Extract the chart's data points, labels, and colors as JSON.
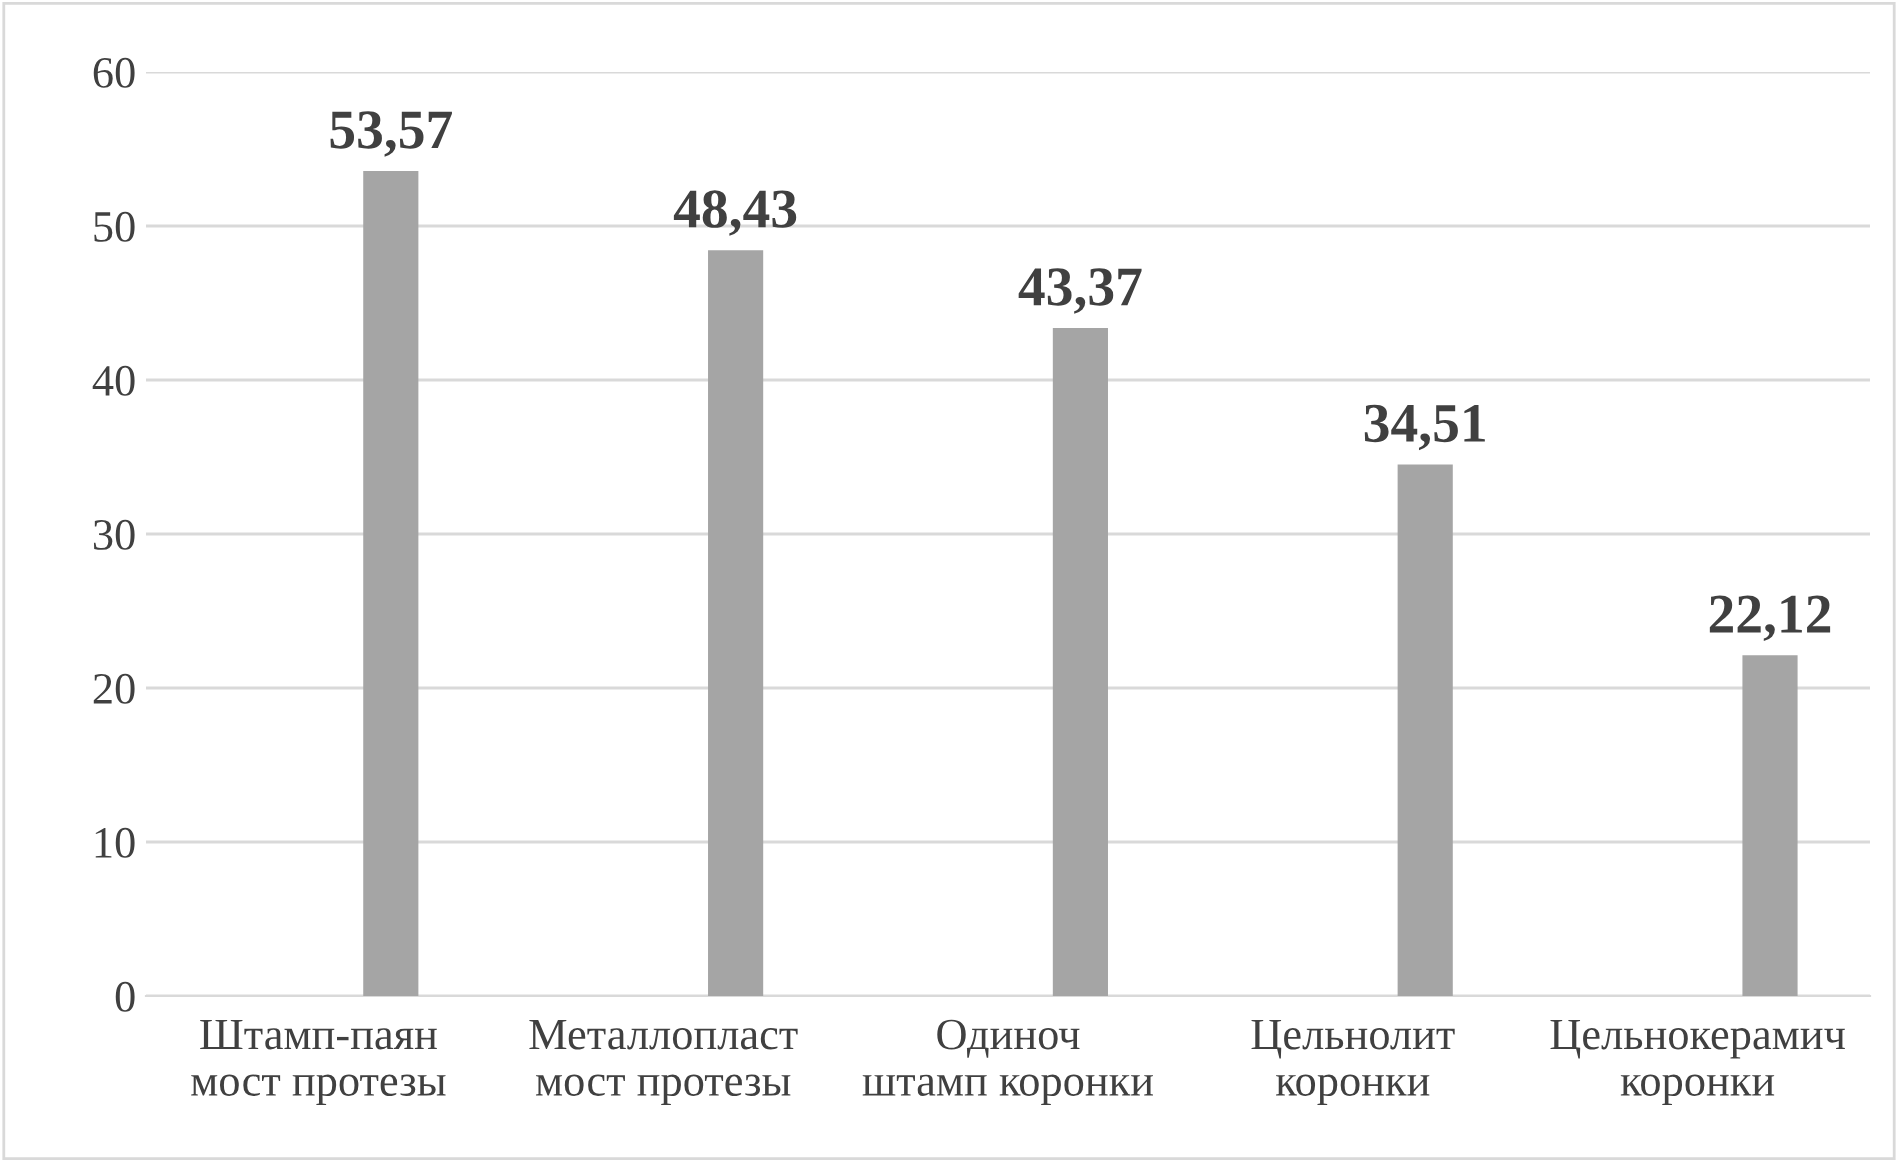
{
  "chart_data": {
    "type": "bar",
    "categories": [
      "Штамп-паян мост протезы",
      "Металлопласт мост протезы",
      "Одиноч штамп коронки",
      "Цельнолит коронки",
      "Цельнокерамич коронки"
    ],
    "values": [
      53.57,
      48.43,
      43.37,
      34.51,
      22.12
    ],
    "value_labels": [
      "53,57",
      "48,43",
      "43,37",
      "34,51",
      "22,12"
    ],
    "color": "#a5a5a5",
    "ylim": [
      0,
      60
    ],
    "yticks": [
      0,
      10,
      20,
      30,
      40,
      50,
      60
    ],
    "grid": "y",
    "legend": false
  }
}
